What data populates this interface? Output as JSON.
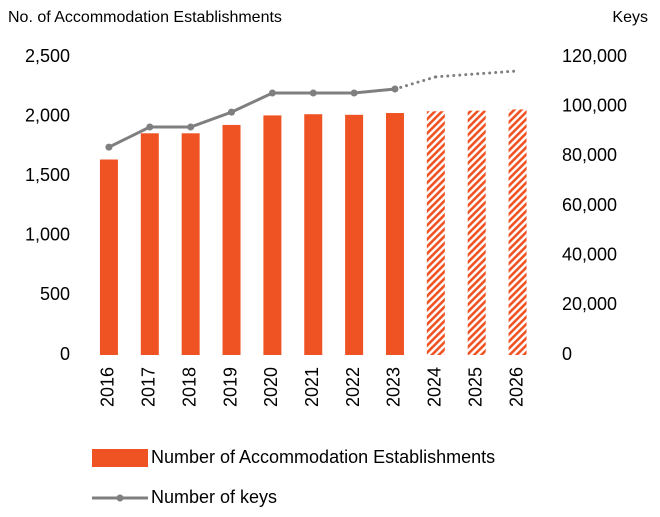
{
  "chart_data": {
    "type": "bar_line",
    "title": "No. of Accommodation Establishments",
    "y2_title": "Keys",
    "categories": [
      "2016",
      "2017",
      "2018",
      "2019",
      "2020",
      "2021",
      "2022",
      "2023",
      "2024",
      "2025",
      "2026"
    ],
    "projected": [
      false,
      false,
      false,
      false,
      false,
      false,
      false,
      false,
      true,
      true,
      true
    ],
    "series": [
      {
        "name": "Number of Accommodation Establishments",
        "color": "#f05323",
        "kind": "bar",
        "values": [
          1640,
          1860,
          1860,
          1930,
          2010,
          2020,
          2015,
          2030,
          2045,
          2050,
          2060
        ]
      },
      {
        "name": "Number of keys",
        "color": "#7f7f7f",
        "kind": "line",
        "axis": "y2",
        "values": [
          83700,
          91800,
          91800,
          97800,
          105500,
          105500,
          105500,
          107100,
          112000,
          113200,
          114400
        ]
      }
    ],
    "ylim": [
      0,
      2500
    ],
    "yticks": [
      0,
      500,
      {
        "value": 1000,
        "label": "1,000"
      },
      {
        "value": 1500,
        "label": "1,500"
      },
      {
        "value": 2000,
        "label": "2,000"
      },
      {
        "value": 2500,
        "label": "2,500"
      }
    ],
    "y2lim": [
      0,
      120000
    ],
    "y2ticks": [
      0,
      {
        "value": 20000,
        "label": "20,000"
      },
      {
        "value": 40000,
        "label": "40,000"
      },
      {
        "value": 60000,
        "label": "60,000"
      },
      {
        "value": 80000,
        "label": "80,000"
      },
      {
        "value": 100000,
        "label": "100,000"
      },
      {
        "value": 120000,
        "label": "120,000"
      }
    ],
    "grid": false
  }
}
